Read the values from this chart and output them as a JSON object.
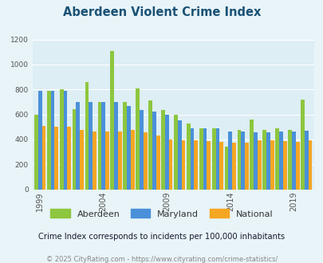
{
  "title": "Aberdeen Violent Crime Index",
  "subtitle": "Crime Index corresponds to incidents per 100,000 inhabitants",
  "footer": "© 2025 CityRating.com - https://www.cityrating.com/crime-statistics/",
  "years": [
    1999,
    2000,
    2001,
    2002,
    2003,
    2004,
    2005,
    2006,
    2007,
    2008,
    2009,
    2010,
    2011,
    2012,
    2013,
    2014,
    2015,
    2016,
    2017,
    2018,
    2019,
    2020
  ],
  "aberdeen": [
    600,
    790,
    800,
    640,
    860,
    700,
    1110,
    700,
    810,
    710,
    635,
    600,
    530,
    490,
    490,
    340,
    475,
    560,
    475,
    490,
    475,
    720
  ],
  "maryland": [
    790,
    790,
    790,
    700,
    700,
    700,
    700,
    670,
    635,
    625,
    595,
    550,
    490,
    490,
    490,
    465,
    460,
    455,
    455,
    460,
    465,
    470
  ],
  "national": [
    510,
    500,
    500,
    475,
    465,
    465,
    460,
    475,
    455,
    430,
    400,
    395,
    390,
    385,
    380,
    375,
    373,
    390,
    390,
    385,
    380,
    395
  ],
  "bar_colors": {
    "aberdeen": "#8dc63f",
    "maryland": "#4a90d9",
    "national": "#f5a623"
  },
  "background_color": "#e8f4f8",
  "plot_bg_color": "#ddeef5",
  "ylim": [
    0,
    1200
  ],
  "yticks": [
    0,
    200,
    400,
    600,
    800,
    1000,
    1200
  ],
  "xtick_years": [
    1999,
    2004,
    2009,
    2014,
    2019
  ],
  "title_color": "#1a5276",
  "subtitle_color": "#1a1a2e",
  "footer_color": "#888888"
}
